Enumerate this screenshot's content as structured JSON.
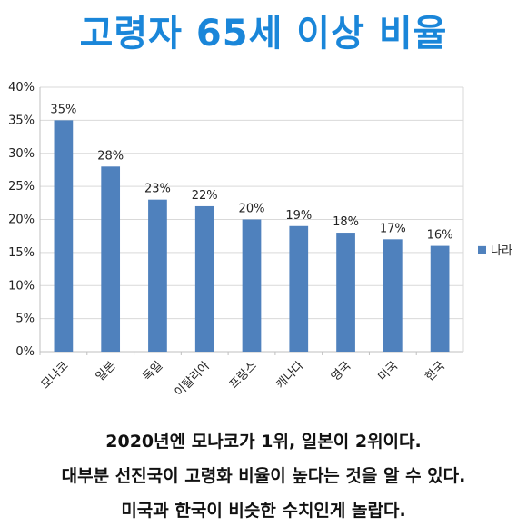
{
  "title": "고령자 65세 이상 비율",
  "captions": [
    "2020년엔 모나코가 1위, 일본이 2위이다.",
    "대부분 선진국이 고령화 비율이 높다는 것을 알 수 있다.",
    "미국과 한국이 비슷한 수치인게 놀랍다."
  ],
  "chart_data": {
    "type": "bar",
    "categories": [
      "모나코",
      "일본",
      "독일",
      "이탈리아",
      "프랑스",
      "캐나다",
      "영국",
      "미국",
      "한국"
    ],
    "series": [
      {
        "name": "나라",
        "values": [
          35,
          28,
          23,
          22,
          20,
          19,
          18,
          17,
          16
        ],
        "color": "#4f81bd"
      }
    ],
    "data_labels": [
      "35%",
      "28%",
      "23%",
      "22%",
      "20%",
      "19%",
      "18%",
      "17%",
      "16%"
    ],
    "y_ticks": [
      "0%",
      "5%",
      "10%",
      "15%",
      "20%",
      "25%",
      "30%",
      "35%",
      "40%"
    ],
    "ylim": [
      0,
      40
    ],
    "grid": true,
    "legend": "right"
  }
}
